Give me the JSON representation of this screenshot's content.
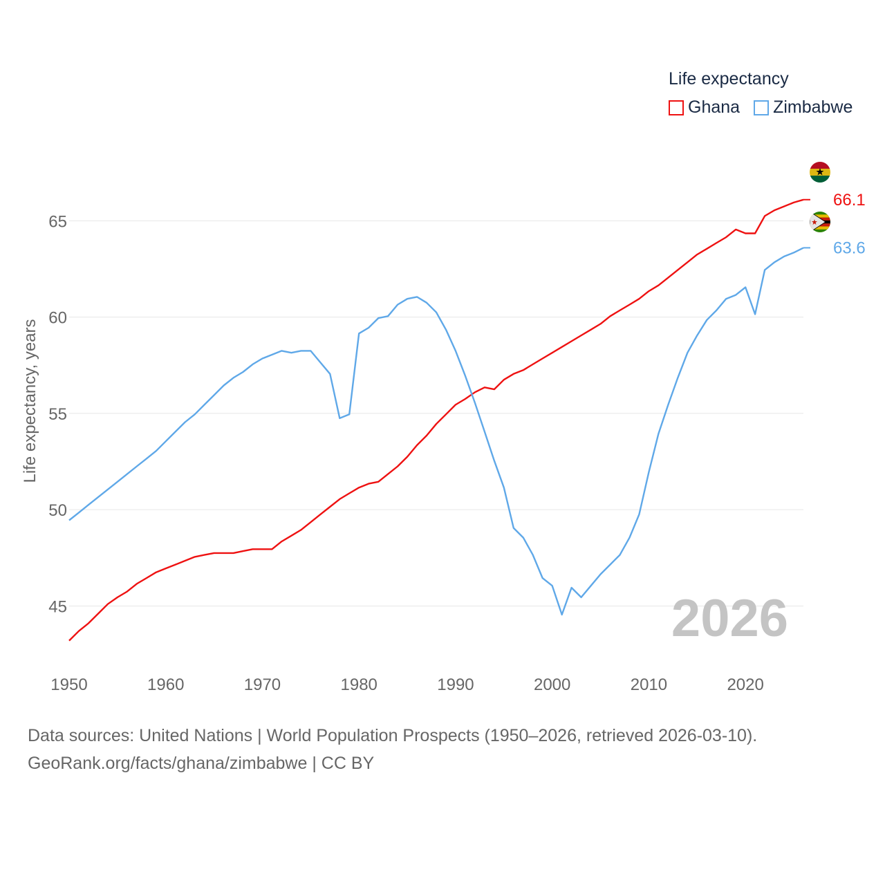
{
  "legend": {
    "title": "Life expectancy",
    "items": [
      {
        "label": "Ghana",
        "color": "#ee1111"
      },
      {
        "label": "Zimbabwe",
        "color": "#5fa8e8"
      }
    ]
  },
  "source": {
    "line1": "Data sources: United Nations | World Population Prospects (1950–2026, retrieved 2026-03-10).",
    "line2": "GeoRank.org/facts/ghana/zimbabwe | CC BY"
  },
  "chart_data": {
    "type": "line",
    "title": "Life expectancy",
    "xlabel": "",
    "ylabel": "Life expectancy, years",
    "xlim": [
      1950,
      2026
    ],
    "ylim": [
      42,
      69
    ],
    "x_ticks": [
      1950,
      1960,
      1970,
      1980,
      1990,
      2000,
      2010,
      2020
    ],
    "y_ticks": [
      45,
      50,
      55,
      60,
      65
    ],
    "year_label": "2026",
    "x": [
      1950,
      1951,
      1952,
      1953,
      1954,
      1955,
      1956,
      1957,
      1958,
      1959,
      1960,
      1961,
      1962,
      1963,
      1964,
      1965,
      1966,
      1967,
      1968,
      1969,
      1970,
      1971,
      1972,
      1973,
      1974,
      1975,
      1976,
      1977,
      1978,
      1979,
      1980,
      1981,
      1982,
      1983,
      1984,
      1985,
      1986,
      1987,
      1988,
      1989,
      1990,
      1991,
      1992,
      1993,
      1994,
      1995,
      1996,
      1997,
      1998,
      1999,
      2000,
      2001,
      2002,
      2003,
      2004,
      2005,
      2006,
      2007,
      2008,
      2009,
      2010,
      2011,
      2012,
      2013,
      2014,
      2015,
      2016,
      2017,
      2018,
      2019,
      2020,
      2021,
      2022,
      2023,
      2024,
      2025,
      2026
    ],
    "series": [
      {
        "name": "Ghana",
        "color": "#ee1111",
        "end_label": "66.1",
        "values": [
          43.2,
          43.7,
          44.1,
          44.6,
          45.1,
          45.45,
          45.75,
          46.15,
          46.45,
          46.75,
          46.95,
          47.15,
          47.35,
          47.55,
          47.65,
          47.75,
          47.75,
          47.75,
          47.85,
          47.95,
          47.95,
          47.95,
          48.35,
          48.65,
          48.95,
          49.35,
          49.75,
          50.15,
          50.55,
          50.85,
          51.15,
          51.35,
          51.45,
          51.85,
          52.25,
          52.75,
          53.35,
          53.85,
          54.45,
          54.95,
          55.45,
          55.75,
          56.1,
          56.35,
          56.25,
          56.75,
          57.05,
          57.25,
          57.55,
          57.85,
          58.15,
          58.45,
          58.75,
          59.05,
          59.35,
          59.65,
          60.05,
          60.35,
          60.65,
          60.95,
          61.35,
          61.65,
          62.05,
          62.45,
          62.85,
          63.25,
          63.55,
          63.85,
          64.15,
          64.55,
          64.35,
          64.35,
          65.25,
          65.55,
          65.75,
          65.95,
          66.1
        ]
      },
      {
        "name": "Zimbabwe",
        "color": "#5fa8e8",
        "end_label": "63.6",
        "values": [
          49.45,
          49.85,
          50.25,
          50.65,
          51.05,
          51.45,
          51.85,
          52.25,
          52.65,
          53.05,
          53.55,
          54.05,
          54.55,
          54.95,
          55.45,
          55.95,
          56.45,
          56.85,
          57.15,
          57.55,
          57.85,
          58.05,
          58.25,
          58.15,
          58.25,
          58.25,
          57.65,
          57.05,
          54.75,
          54.95,
          59.15,
          59.45,
          59.95,
          60.05,
          60.65,
          60.95,
          61.05,
          60.75,
          60.25,
          59.35,
          58.25,
          56.95,
          55.55,
          54.05,
          52.55,
          51.15,
          49.05,
          48.55,
          47.65,
          46.45,
          46.05,
          44.55,
          45.95,
          45.45,
          46.05,
          46.65,
          47.15,
          47.65,
          48.55,
          49.75,
          51.95,
          53.95,
          55.45,
          56.85,
          58.15,
          59.05,
          59.85,
          60.35,
          60.95,
          61.15,
          61.55,
          60.15,
          62.45,
          62.85,
          63.15,
          63.35,
          63.6
        ]
      }
    ]
  }
}
